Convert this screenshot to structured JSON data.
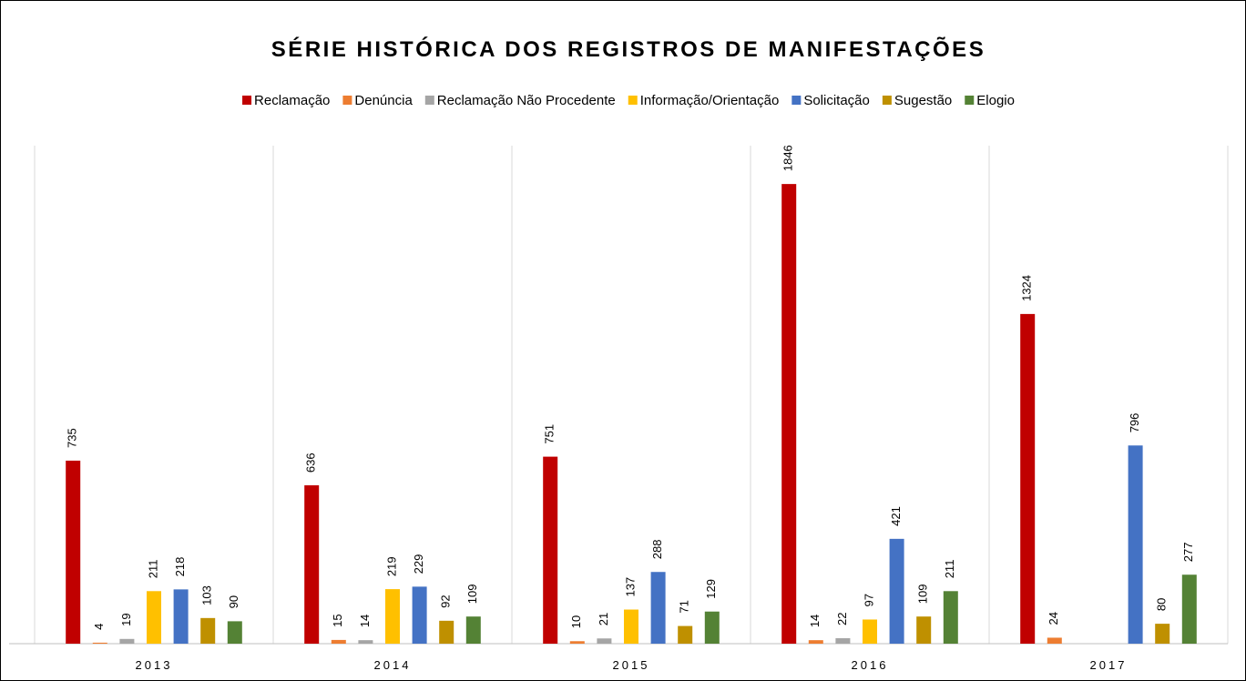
{
  "chart_data": {
    "type": "bar",
    "title": "SÉRIE HISTÓRICA DOS REGISTROS DE MANIFESTAÇÕES",
    "categories": [
      "2013",
      "2014",
      "2015",
      "2016",
      "2017"
    ],
    "series": [
      {
        "name": "Reclamação",
        "color": "#C00000",
        "values": [
          735,
          636,
          751,
          1846,
          1324
        ]
      },
      {
        "name": "Denúncia",
        "color": "#ED7D31",
        "values": [
          4,
          15,
          10,
          14,
          24
        ]
      },
      {
        "name": "Reclamação Não Procedente",
        "color": "#A5A5A5",
        "values": [
          19,
          14,
          21,
          22,
          null
        ]
      },
      {
        "name": "Informação/Orientação",
        "color": "#FFC000",
        "values": [
          211,
          219,
          137,
          97,
          null
        ]
      },
      {
        "name": "Solicitação",
        "color": "#4472C4",
        "values": [
          218,
          229,
          288,
          421,
          796
        ]
      },
      {
        "name": "Sugestão",
        "color": "#BF9000",
        "values": [
          103,
          92,
          71,
          109,
          80
        ]
      },
      {
        "name": "Elogio",
        "color": "#548235",
        "values": [
          90,
          109,
          129,
          211,
          277
        ]
      }
    ],
    "ylim": [
      0,
      2000
    ],
    "legend": "top"
  }
}
